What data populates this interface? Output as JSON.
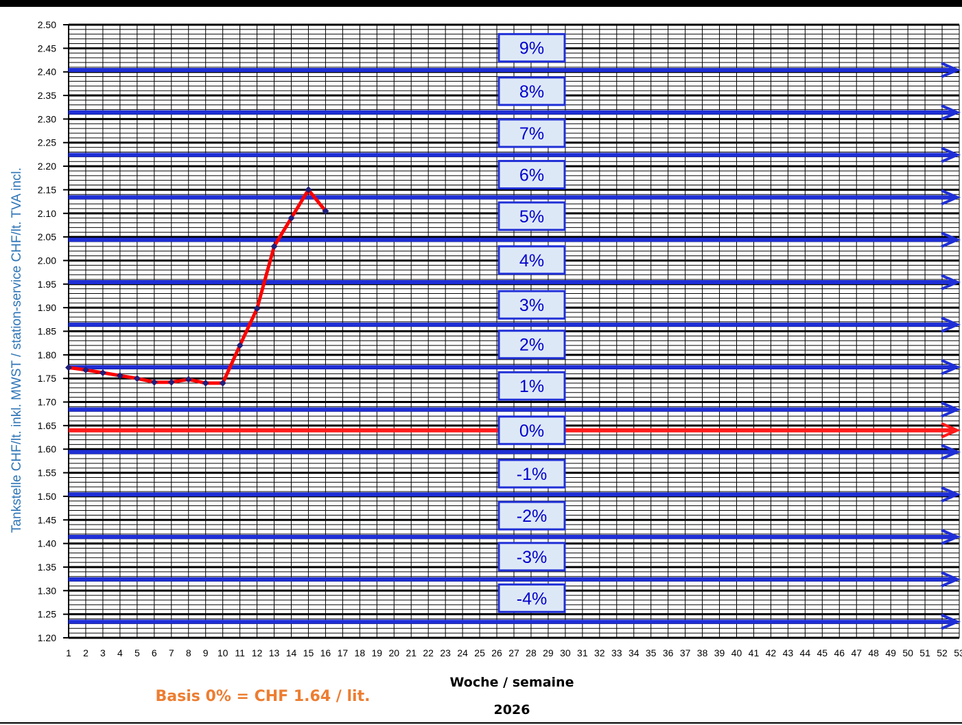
{
  "chart_data": {
    "type": "line",
    "ylabel": "Tankstelle CHF/lt. inkl. MWST  /  station-service CHF/lt. TVA incl.",
    "xlabel": "Woche / semaine",
    "year_label": "2026",
    "basis_label": "Basis 0% = CHF 1.64 / lit.",
    "ylim": [
      1.2,
      2.5
    ],
    "xlim": [
      1,
      53
    ],
    "y_major_step": 0.05,
    "y_minor_step": 0.01,
    "y_ticks": [
      "1.20",
      "1.25",
      "1.30",
      "1.35",
      "1.40",
      "1.45",
      "1.50",
      "1.55",
      "1.60",
      "1.65",
      "1.70",
      "1.75",
      "1.80",
      "1.85",
      "1.90",
      "1.95",
      "2.00",
      "2.05",
      "2.10",
      "2.15",
      "2.20",
      "2.25",
      "2.30",
      "2.35",
      "2.40",
      "2.45",
      "2.50"
    ],
    "x_ticks": [
      "1",
      "2",
      "3",
      "4",
      "5",
      "6",
      "7",
      "8",
      "9",
      "10",
      "11",
      "12",
      "13",
      "14",
      "15",
      "16",
      "17",
      "18",
      "19",
      "20",
      "21",
      "22",
      "23",
      "24",
      "25",
      "26",
      "27",
      "28",
      "29",
      "30",
      "31",
      "32",
      "33",
      "34",
      "35",
      "36",
      "37",
      "38",
      "39",
      "40",
      "41",
      "42",
      "43",
      "44",
      "45",
      "46",
      "47",
      "48",
      "49",
      "50",
      "51",
      "52",
      "53"
    ],
    "grid": true,
    "series": [
      {
        "color": "#ff0000",
        "marker_color": "#1f1f7a",
        "x": [
          1,
          2,
          3,
          4,
          5,
          6,
          7,
          8,
          9,
          10,
          11,
          12,
          13,
          14,
          15,
          16
        ],
        "y": [
          1.773,
          1.768,
          1.762,
          1.756,
          1.75,
          1.742,
          1.742,
          1.748,
          1.74,
          1.74,
          1.82,
          1.898,
          2.03,
          2.09,
          2.15,
          2.105
        ]
      }
    ],
    "reference_lines": [
      {
        "label": "9%",
        "value": 2.404,
        "color": "#1f2fd6"
      },
      {
        "label": "8%",
        "value": 2.314,
        "color": "#1f2fd6"
      },
      {
        "label": "7%",
        "value": 2.224,
        "color": "#1f2fd6"
      },
      {
        "label": "6%",
        "value": 2.134,
        "color": "#1f2fd6"
      },
      {
        "label": "5%",
        "value": 2.044,
        "color": "#1f2fd6"
      },
      {
        "label": "4%",
        "value": 1.954,
        "color": "#1f2fd6"
      },
      {
        "label": "3%",
        "value": 1.864,
        "color": "#1f2fd6"
      },
      {
        "label": "2%",
        "value": 1.774,
        "color": "#1f2fd6"
      },
      {
        "label": "1%",
        "value": 1.684,
        "color": "#1f2fd6"
      },
      {
        "label": "0%",
        "value": 1.64,
        "color": "#ff1a1a"
      },
      {
        "label": "",
        "value": 1.594,
        "color": "#1f2fd6"
      },
      {
        "label": "-1%",
        "value": 1.504,
        "color": "#1f2fd6"
      },
      {
        "label": "-2%",
        "value": 1.414,
        "color": "#1f2fd6"
      },
      {
        "label": "-3%",
        "value": 1.324,
        "color": "#1f2fd6"
      },
      {
        "label": "-4%",
        "value": 1.234,
        "color": "#1f2fd6"
      }
    ],
    "label_boxes": [
      {
        "label": "9%",
        "value": 2.451
      },
      {
        "label": "8%",
        "value": 2.359
      },
      {
        "label": "7%",
        "value": 2.27
      },
      {
        "label": "6%",
        "value": 2.182
      },
      {
        "label": "5%",
        "value": 2.094
      },
      {
        "label": "4%",
        "value": 2.001
      },
      {
        "label": "3%",
        "value": 1.906
      },
      {
        "label": "2%",
        "value": 1.822
      },
      {
        "label": "1%",
        "value": 1.734
      },
      {
        "label": "0%",
        "value": 1.64
      },
      {
        "label": "-1%",
        "value": 1.548
      },
      {
        "label": "-2%",
        "value": 1.459
      },
      {
        "label": "-3%",
        "value": 1.372
      },
      {
        "label": "-4%",
        "value": 1.284
      }
    ],
    "colors": {
      "label_box_fill": "#dde8f7",
      "label_box_border": "#1f2fd6",
      "label_text": "#0000cc",
      "axis_label": "#2e75b6",
      "basis_text": "#ed7d31"
    }
  }
}
